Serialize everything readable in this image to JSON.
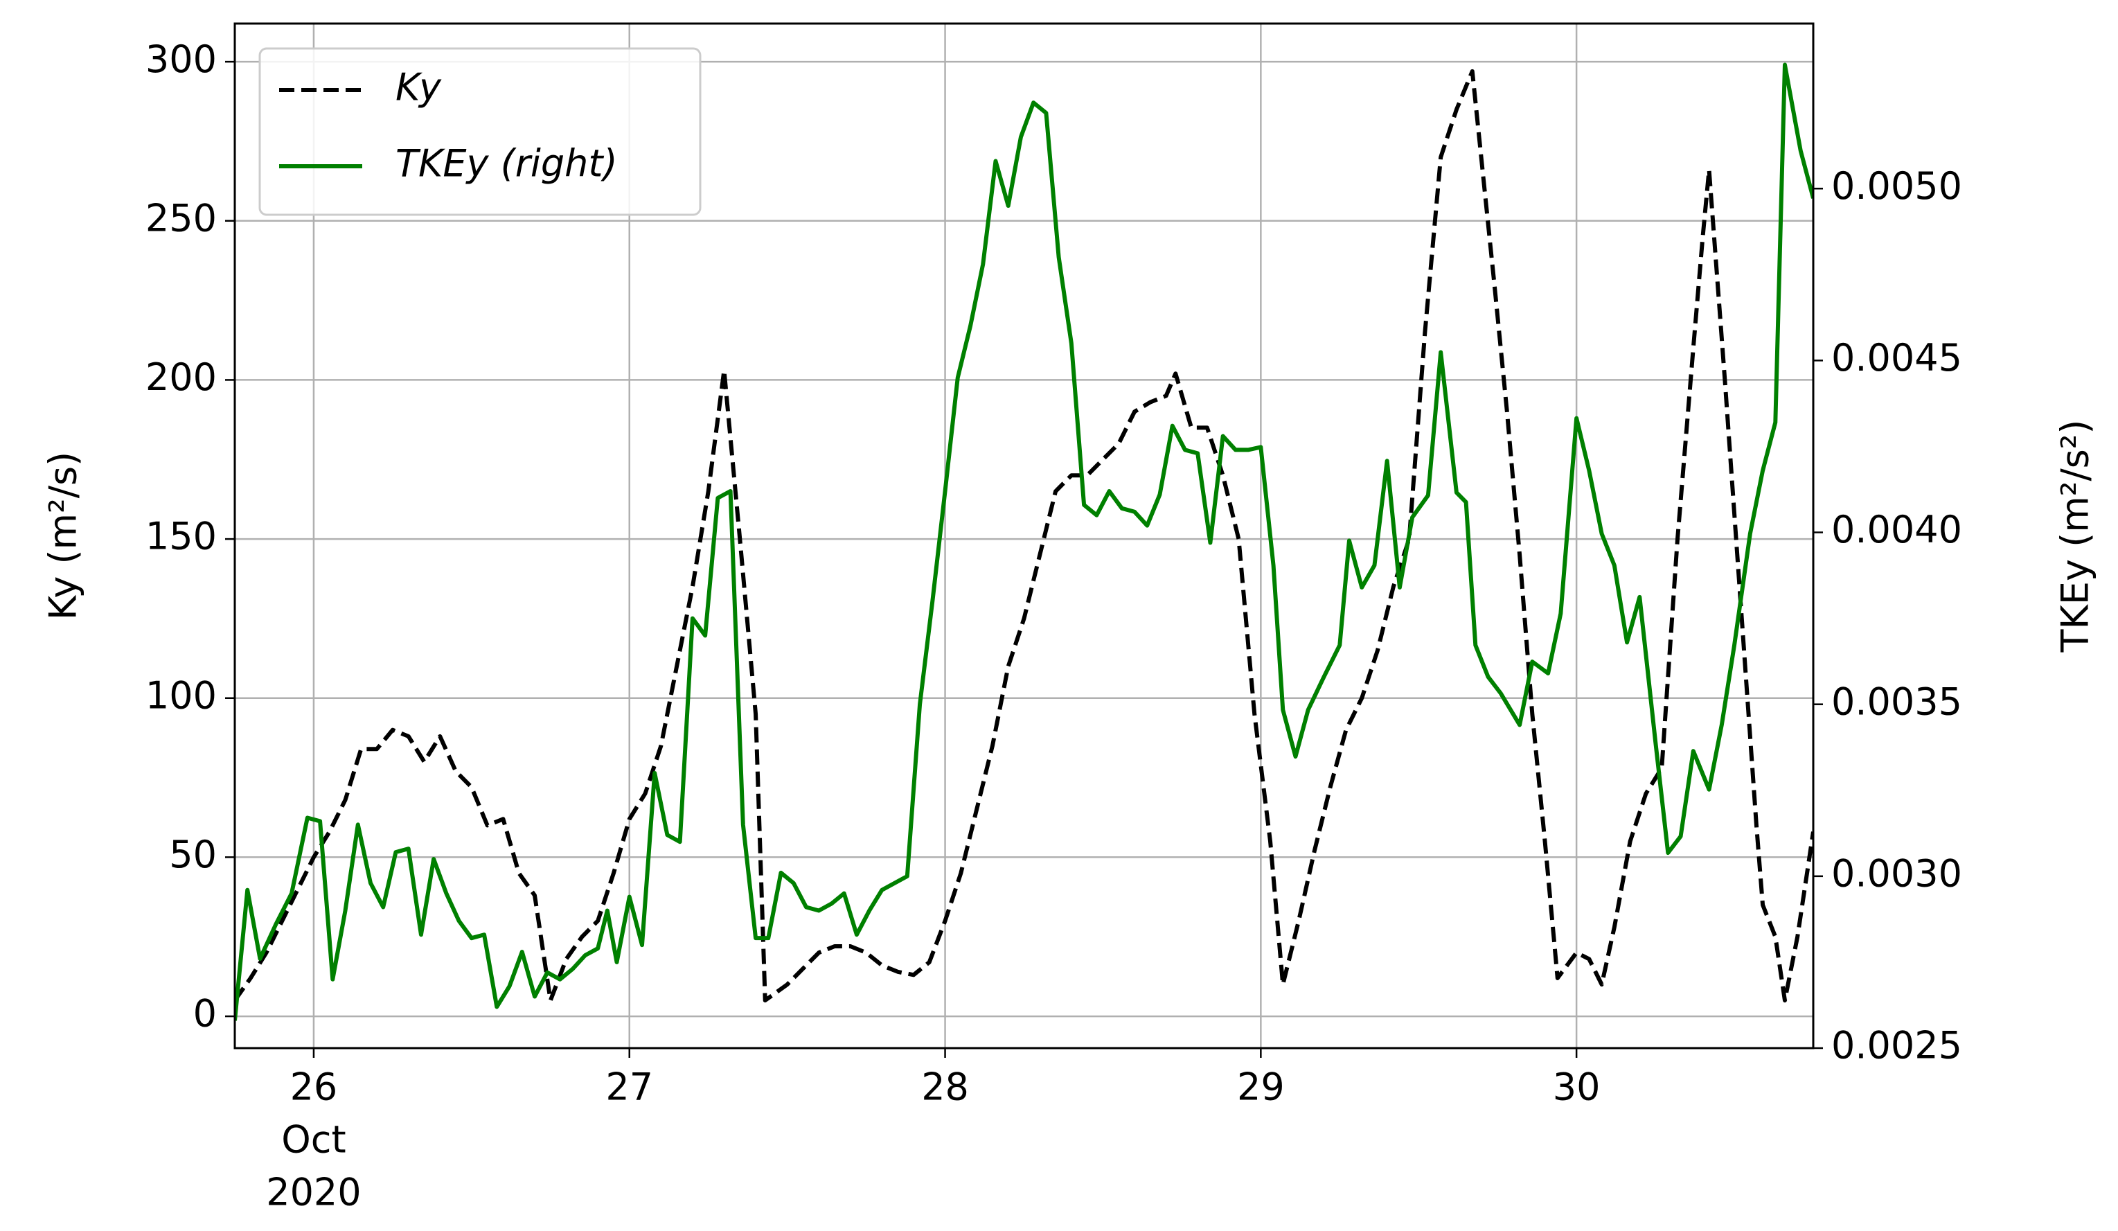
{
  "chart_data": {
    "type": "line",
    "ylabel": "Ky (m²/s)",
    "y2label": "TKEy (m²/s²)",
    "x_month_label": "Oct",
    "x_year_label": "2020",
    "xlim": [
      25.75,
      30.75
    ],
    "xticks": [
      26,
      27,
      28,
      29,
      30
    ],
    "ylim": [
      -10,
      312
    ],
    "yticks": [
      0,
      50,
      100,
      150,
      200,
      250,
      300
    ],
    "y2lim": [
      0.0025,
      0.00548
    ],
    "y2ticks": [
      {
        "value": 0.0025,
        "label": "0.0025"
      },
      {
        "value": 0.003,
        "label": "0.0030"
      },
      {
        "value": 0.0035,
        "label": "0.0035"
      },
      {
        "value": 0.004,
        "label": "0.0040"
      },
      {
        "value": 0.0045,
        "label": "0.0045"
      },
      {
        "value": 0.005,
        "label": "0.0050"
      }
    ],
    "grid": true,
    "legend": "upper left",
    "series": [
      {
        "name": "Ky",
        "color": "#000000",
        "dash": true,
        "x": [
          25.75,
          25.8,
          25.85,
          25.9,
          25.95,
          26.0,
          26.05,
          26.1,
          26.15,
          26.2,
          26.25,
          26.3,
          26.35,
          26.4,
          26.45,
          26.5,
          26.55,
          26.6,
          26.65,
          26.7,
          26.75,
          26.8,
          26.85,
          26.9,
          26.95,
          27.0,
          27.05,
          27.1,
          27.15,
          27.2,
          27.25,
          27.3,
          27.35,
          27.4,
          27.43,
          27.5,
          27.55,
          27.6,
          27.65,
          27.7,
          27.75,
          27.8,
          27.85,
          27.9,
          27.95,
          28.0,
          28.05,
          28.1,
          28.15,
          28.2,
          28.25,
          28.3,
          28.35,
          28.4,
          28.45,
          28.5,
          28.55,
          28.6,
          28.65,
          28.7,
          28.73,
          28.78,
          28.83,
          28.88,
          28.93,
          28.98,
          29.03,
          29.07,
          29.12,
          29.17,
          29.22,
          29.27,
          29.32,
          29.37,
          29.42,
          29.47,
          29.52,
          29.57,
          29.62,
          29.67,
          29.74,
          29.78,
          29.82,
          29.86,
          29.9,
          29.94,
          30.0,
          30.04,
          30.08,
          30.12,
          30.17,
          30.22,
          30.27,
          30.32,
          30.37,
          30.4,
          30.42,
          30.47,
          30.52,
          30.57,
          30.59,
          30.63,
          30.66,
          30.7,
          30.75
        ],
        "values": [
          5,
          12,
          20,
          30,
          40,
          50,
          58,
          68,
          84,
          84,
          90,
          88,
          80,
          88,
          77,
          72,
          60,
          62,
          45,
          38,
          5,
          18,
          25,
          30,
          45,
          62,
          70,
          85,
          110,
          135,
          165,
          203,
          150,
          95,
          5,
          10,
          15,
          20,
          22,
          22,
          20,
          16,
          14,
          13,
          17,
          30,
          45,
          65,
          85,
          110,
          125,
          145,
          165,
          170,
          170,
          175,
          180,
          190,
          193,
          195,
          202,
          185,
          185,
          170,
          150,
          95,
          55,
          10,
          30,
          52,
          72,
          90,
          100,
          115,
          135,
          150,
          215,
          270,
          285,
          297,
          230,
          190,
          145,
          95,
          55,
          12,
          20,
          18,
          10,
          28,
          55,
          70,
          78,
          150,
          210,
          245,
          266,
          200,
          130,
          60,
          35,
          25,
          5,
          25,
          58
        ]
      },
      {
        "name": "TKEy (right)",
        "color": "#008000",
        "axis": "y2",
        "x": [
          25.75,
          25.79,
          25.83,
          25.88,
          25.93,
          25.98,
          26.02,
          26.06,
          26.1,
          26.14,
          26.18,
          26.22,
          26.26,
          26.3,
          26.34,
          26.38,
          26.42,
          26.46,
          26.5,
          26.54,
          26.58,
          26.62,
          26.66,
          26.7,
          26.74,
          26.78,
          26.82,
          26.86,
          26.9,
          26.93,
          26.96,
          27.0,
          27.04,
          27.08,
          27.12,
          27.16,
          27.2,
          27.24,
          27.28,
          27.32,
          27.36,
          27.4,
          27.44,
          27.48,
          27.52,
          27.56,
          27.6,
          27.64,
          27.68,
          27.72,
          27.76,
          27.8,
          27.88,
          27.92,
          27.96,
          28.0,
          28.04,
          28.08,
          28.12,
          28.16,
          28.2,
          28.24,
          28.28,
          28.32,
          28.36,
          28.4,
          28.44,
          28.48,
          28.52,
          28.56,
          28.6,
          28.64,
          28.68,
          28.72,
          28.76,
          28.8,
          28.84,
          28.88,
          28.92,
          28.96,
          29.0,
          29.04,
          29.07,
          29.11,
          29.15,
          29.2,
          29.25,
          29.28,
          29.32,
          29.36,
          29.4,
          29.44,
          29.48,
          29.53,
          29.57,
          29.62,
          29.65,
          29.68,
          29.72,
          29.76,
          29.82,
          29.86,
          29.91,
          29.95,
          30.0,
          30.04,
          30.08,
          30.12,
          30.16,
          30.2,
          30.25,
          30.29,
          30.33,
          30.37,
          30.42,
          30.46,
          30.5,
          30.55,
          30.59,
          30.63,
          30.66,
          30.71,
          30.75
        ],
        "values": [
          0.00258,
          0.00296,
          0.00276,
          0.00286,
          0.00295,
          0.00317,
          0.00316,
          0.0027,
          0.0029,
          0.00315,
          0.00298,
          0.00291,
          0.00307,
          0.00308,
          0.00283,
          0.00305,
          0.00295,
          0.00287,
          0.00282,
          0.00283,
          0.00262,
          0.00268,
          0.00278,
          0.00265,
          0.00272,
          0.0027,
          0.00273,
          0.00277,
          0.00279,
          0.0029,
          0.00275,
          0.00294,
          0.0028,
          0.0033,
          0.00312,
          0.0031,
          0.00375,
          0.0037,
          0.0041,
          0.00412,
          0.00315,
          0.00282,
          0.00282,
          0.00301,
          0.00298,
          0.00291,
          0.0029,
          0.00292,
          0.00295,
          0.00283,
          0.0029,
          0.00296,
          0.003,
          0.0035,
          0.0038,
          0.00412,
          0.00445,
          0.0046,
          0.00478,
          0.00508,
          0.00495,
          0.00515,
          0.00525,
          0.00522,
          0.0048,
          0.00455,
          0.00408,
          0.00405,
          0.00412,
          0.00407,
          0.00406,
          0.00402,
          0.00411,
          0.00431,
          0.00424,
          0.00423,
          0.00397,
          0.00428,
          0.00424,
          0.00424,
          0.004248,
          0.003904,
          0.003484,
          0.003348,
          0.003484,
          0.00358,
          0.003672,
          0.003976,
          0.00384,
          0.003904,
          0.004208,
          0.00384,
          0.004044,
          0.004108,
          0.004524,
          0.004116,
          0.004088,
          0.003672,
          0.00358,
          0.003532,
          0.00344,
          0.003624,
          0.00359,
          0.003764,
          0.004332,
          0.00418,
          0.003996,
          0.003904,
          0.00368,
          0.003812,
          0.003392,
          0.003068,
          0.003116,
          0.003364,
          0.003252,
          0.00344,
          0.003672,
          0.003996,
          0.00418,
          0.00432,
          0.00536,
          0.00511,
          0.004972
        ]
      }
    ]
  }
}
